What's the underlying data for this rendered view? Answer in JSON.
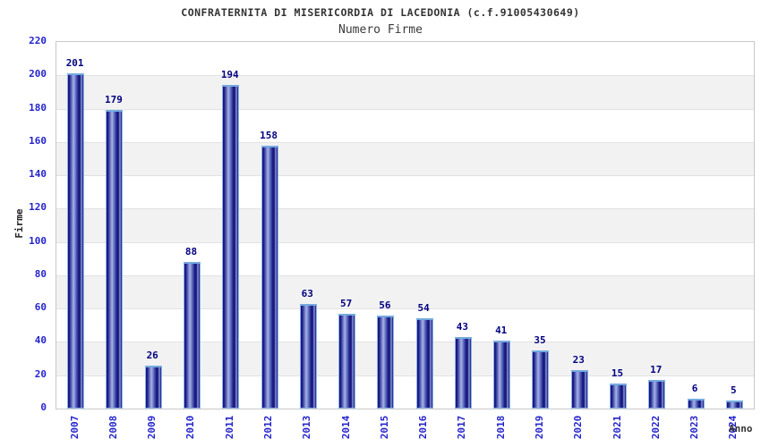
{
  "header": {
    "title": "CONFRATERNITA DI MISERICORDIA DI LACEDONIA (c.f.91005430649)",
    "subtitle": "Numero Firme"
  },
  "chart_data": {
    "type": "bar",
    "title": "CONFRATERNITA DI MISERICORDIA DI LACEDONIA (c.f.91005430649)",
    "subtitle": "Numero Firme",
    "categories": [
      "2007",
      "2008",
      "2009",
      "2010",
      "2011",
      "2012",
      "2013",
      "2014",
      "2015",
      "2016",
      "2017",
      "2018",
      "2019",
      "2020",
      "2021",
      "2022",
      "2023",
      "2024"
    ],
    "values": [
      201,
      179,
      26,
      88,
      194,
      158,
      63,
      57,
      56,
      54,
      43,
      41,
      35,
      23,
      15,
      17,
      6,
      5
    ],
    "xlabel": "Anno",
    "ylabel": "Firme",
    "ylim": [
      0,
      220
    ],
    "yticks": [
      0,
      20,
      40,
      60,
      80,
      100,
      120,
      140,
      160,
      180,
      200,
      220
    ],
    "grid": "horizontal-alternating-bands",
    "legend": "none",
    "value_labels": "above-bars",
    "colors": {
      "bar_dark": "#111178",
      "bar_highlight": "#a6b3e8",
      "bar_border": "#8ab5e8",
      "bar_cap": "#74aadf",
      "tick_label_blue": "#2424cc",
      "value_label_navy": "#000080",
      "band_gray": "#f2f2f2",
      "gridline": "#e2e2e2",
      "plot_border": "#c8c8c8",
      "title_color": "#333333",
      "background": "#ffffff"
    }
  }
}
